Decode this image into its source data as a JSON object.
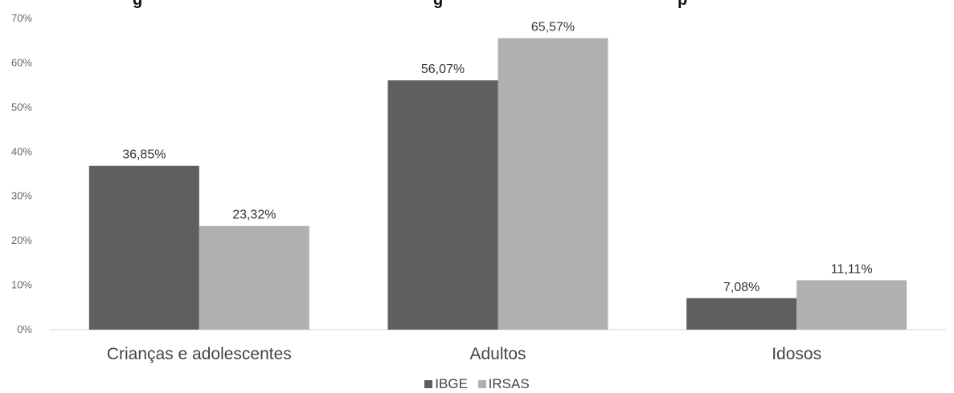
{
  "title_fragments": {
    "left": "g",
    "right": "g",
    "tail": "p"
  },
  "chart_data": {
    "type": "bar",
    "categories": [
      "Crianças e adolescentes",
      "Adultos",
      "Idosos"
    ],
    "series": [
      {
        "name": "IBGE",
        "values": [
          36.85,
          56.07,
          7.08
        ],
        "labels": [
          "36,85%",
          "56,07%",
          "7,08%"
        ],
        "color": "#5f5f5f"
      },
      {
        "name": "IRSAS",
        "values": [
          23.32,
          65.57,
          11.11
        ],
        "labels": [
          "23,32%",
          "65,57%",
          "11,11%"
        ],
        "color": "#b0b0b0"
      }
    ],
    "ylim": [
      0,
      70
    ],
    "yticks": [
      "0%",
      "10%",
      "20%",
      "30%",
      "40%",
      "50%",
      "60%",
      "70%"
    ],
    "grid": false,
    "legend_position": "bottom-center",
    "xlabel": "",
    "ylabel": ""
  }
}
